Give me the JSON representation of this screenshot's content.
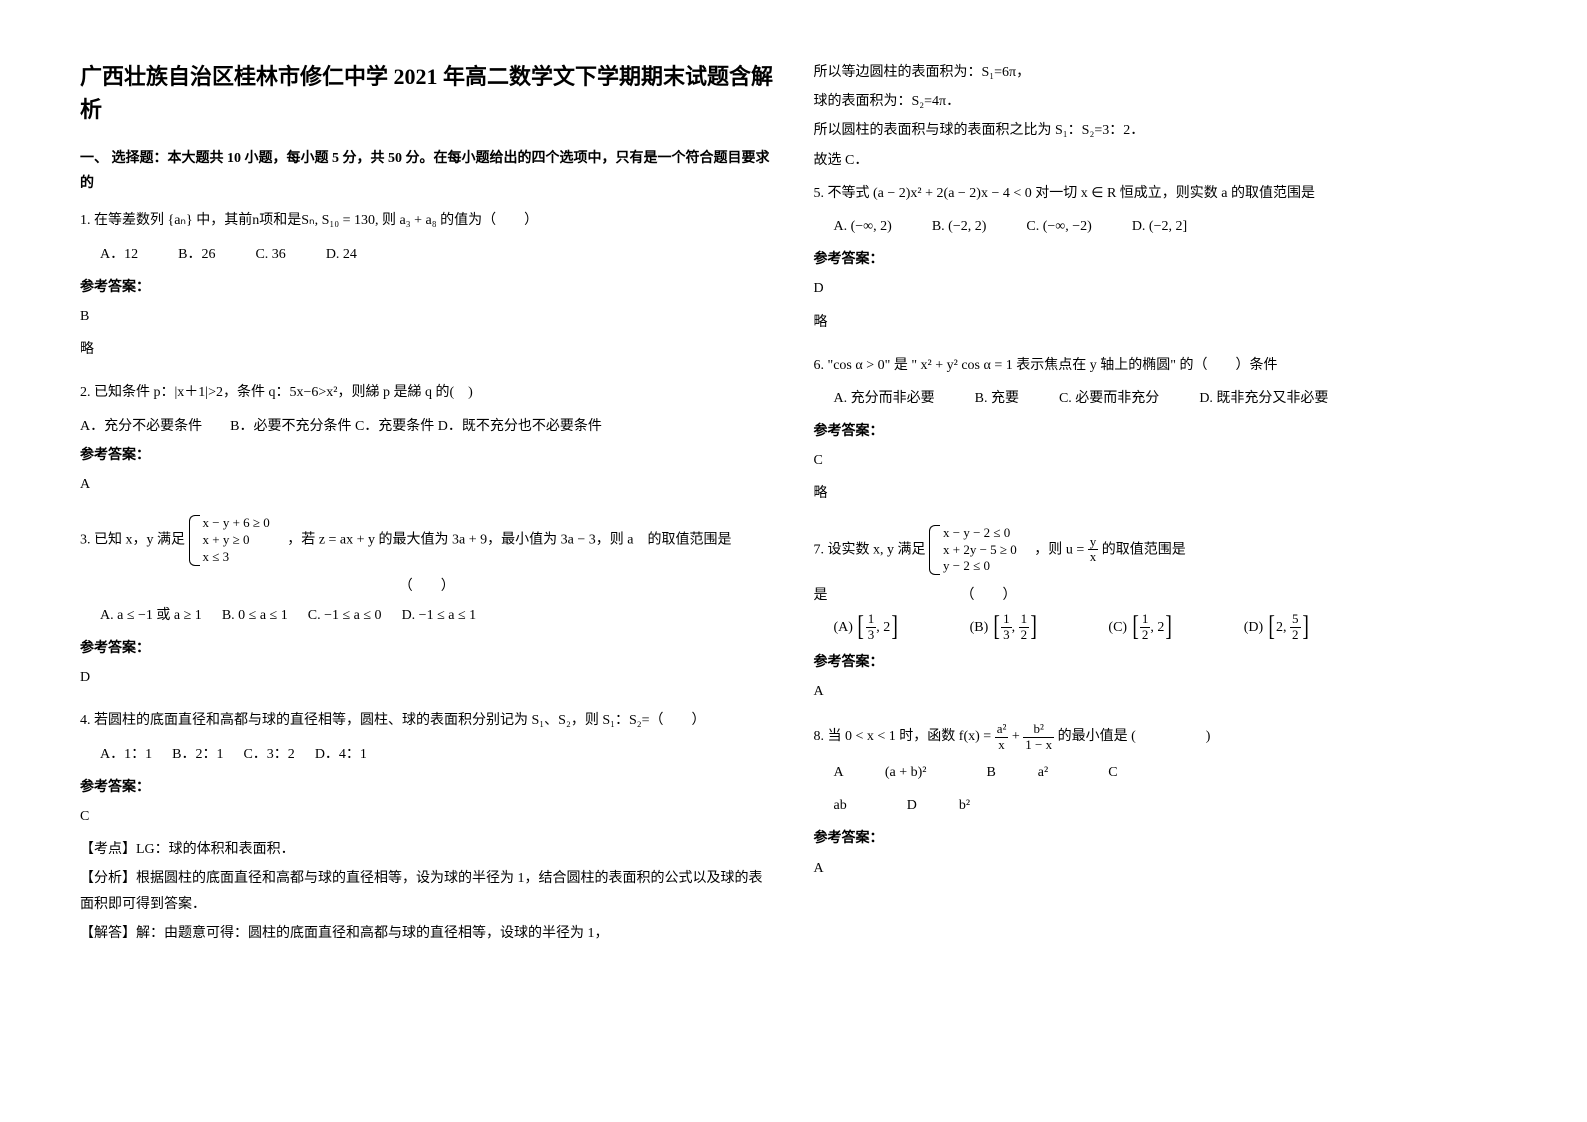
{
  "title": "广西壮族自治区桂林市修仁中学 2021 年高二数学文下学期期末试题含解析",
  "section1_heading": "一、 选择题：本大题共 10 小题，每小题 5 分，共 50 分。在每小题给出的四个选项中，只有是一个符合题目要求的",
  "q1": {
    "stem_pre": "1. 在等差数列",
    "stem_seq": "{aₙ}",
    "stem_mid": " 中，其前n项和是Sₙ, S₁₀ = 130, 则 a₃ + a₈ 的值为（　　）",
    "options": {
      "A": "A．12",
      "B": "B．26",
      "C": "C. 36",
      "D": "D. 24"
    },
    "answer_label": "参考答案：",
    "answer": "B",
    "note": "略"
  },
  "q2": {
    "stem": "2. 已知条件 p：|x＋1|>2，条件 q：5x−6>x²，则綈 p 是綈 q 的(　)",
    "options_line": "A．充分不必要条件　　B．必要不充分条件 C．充要条件 D．既不充分也不必要条件",
    "answer_label": "参考答案：",
    "answer": "A"
  },
  "q3": {
    "stem_pre": "3. 已知 x，y 满足 ",
    "sys": {
      "r1": "x − y + 6 ≥ 0",
      "r2": "x + y ≥ 0",
      "r3": "x ≤ 3"
    },
    "stem_mid1": "　，若 ",
    "z_expr": "z = ax + y",
    "stem_mid2": " 的最大值为 3a + 9，最小值为 3a − 3，则 a　的取值范围是",
    "paren": "（　　）",
    "options": {
      "A": "A. a ≤ −1 或 a ≥ 1",
      "B": "B. 0 ≤ a ≤ 1",
      "C": "C. −1 ≤ a ≤ 0",
      "D": "D. −1 ≤ a ≤ 1"
    },
    "answer_label": "参考答案：",
    "answer": "D"
  },
  "q4": {
    "stem": "4. 若圆柱的底面直径和高都与球的直径相等，圆柱、球的表面积分别记为 S₁、S₂，则 S₁：S₂=（　　）",
    "options": {
      "A": "A．1：1",
      "B": "B．2：1",
      "C": "C．3：2",
      "D": "D．4：1"
    },
    "answer_label": "参考答案：",
    "answer": "C",
    "exp1": "【考点】LG：球的体积和表面积．",
    "exp2": "【分析】根据圆柱的底面直径和高都与球的直径相等，设为球的半径为 1，结合圆柱的表面积的公式以及球的表面积即可得到答案．",
    "exp3": "【解答】解：由题意可得：圆柱的底面直径和高都与球的直径相等，设球的半径为 1，"
  },
  "col2": {
    "line1": "所以等边圆柱的表面积为：S₁=6π，",
    "line2": "球的表面积为：S₂=4π．",
    "line3": "所以圆柱的表面积与球的表面积之比为 S₁：S₂=3：2．",
    "line4": "故选 C．"
  },
  "q5": {
    "stem_pre": "5. 不等式 ",
    "expr": "(a − 2)x² + 2(a − 2)x − 4 < 0",
    "stem_mid": " 对一切 x ∈ R 恒成立，则实数 a 的取值范围是",
    "options": {
      "A": "A. (−∞, 2)",
      "B": "B. (−2, 2)",
      "C": "C. (−∞, −2)",
      "D": "D. (−2, 2]"
    },
    "answer_label": "参考答案：",
    "answer": "D",
    "note": "略"
  },
  "q6": {
    "stem_pre": "6. \"cos α > 0\" 是 \"",
    "expr": "x² + y² cos α = 1",
    "stem_post": " 表示焦点在 y 轴上的椭圆\" 的（　　）条件",
    "options": {
      "A": "A. 充分而非必要",
      "B": "B. 充要",
      "C": "C. 必要而非充分",
      "D": "D. 既非充分又非必要"
    },
    "answer_label": "参考答案：",
    "answer": "C",
    "note": "略"
  },
  "q7": {
    "stem_pre": "7. 设实数 x, y 满足 ",
    "sys": {
      "r1": "x − y − 2 ≤ 0",
      "r2": "x + 2y − 5 ≥ 0",
      "r3": "y − 2 ≤ 0"
    },
    "stem_mid": "　，则 ",
    "u_eq": {
      "lhs": "u =",
      "num": "y",
      "den": "x"
    },
    "stem_post": " 的取值范围是",
    "paren": "（　　）",
    "options": {
      "A": {
        "label": "(A)",
        "l": "1",
        "ld": "3",
        "r": "2"
      },
      "B": {
        "label": "(B)",
        "l": "1",
        "ld": "3",
        "rn": "1",
        "rd": "2"
      },
      "C": {
        "label": "(C)",
        "l": "1",
        "ld": "2",
        "r": "2"
      },
      "D": {
        "label": "(D)",
        "l": "2",
        "rn": "5",
        "rd": "2"
      }
    },
    "answer_label": "参考答案：",
    "answer": "A"
  },
  "q8": {
    "stem_pre": "8. 当 0 < x < 1 时，函数 ",
    "fx": {
      "lhs": "f(x) =",
      "t1n": "a²",
      "t1d": "x",
      "plus": "+",
      "t2n": "b²",
      "t2d": "1 − x"
    },
    "stem_post": " 的最小值是 (　　　　　)",
    "options": {
      "A": "A　　　(a + b)²",
      "B": "B　　　a²",
      "C": "C",
      "ab": "ab",
      "D": "D　　　b²"
    },
    "answer_label": "参考答案：",
    "answer": "A"
  }
}
